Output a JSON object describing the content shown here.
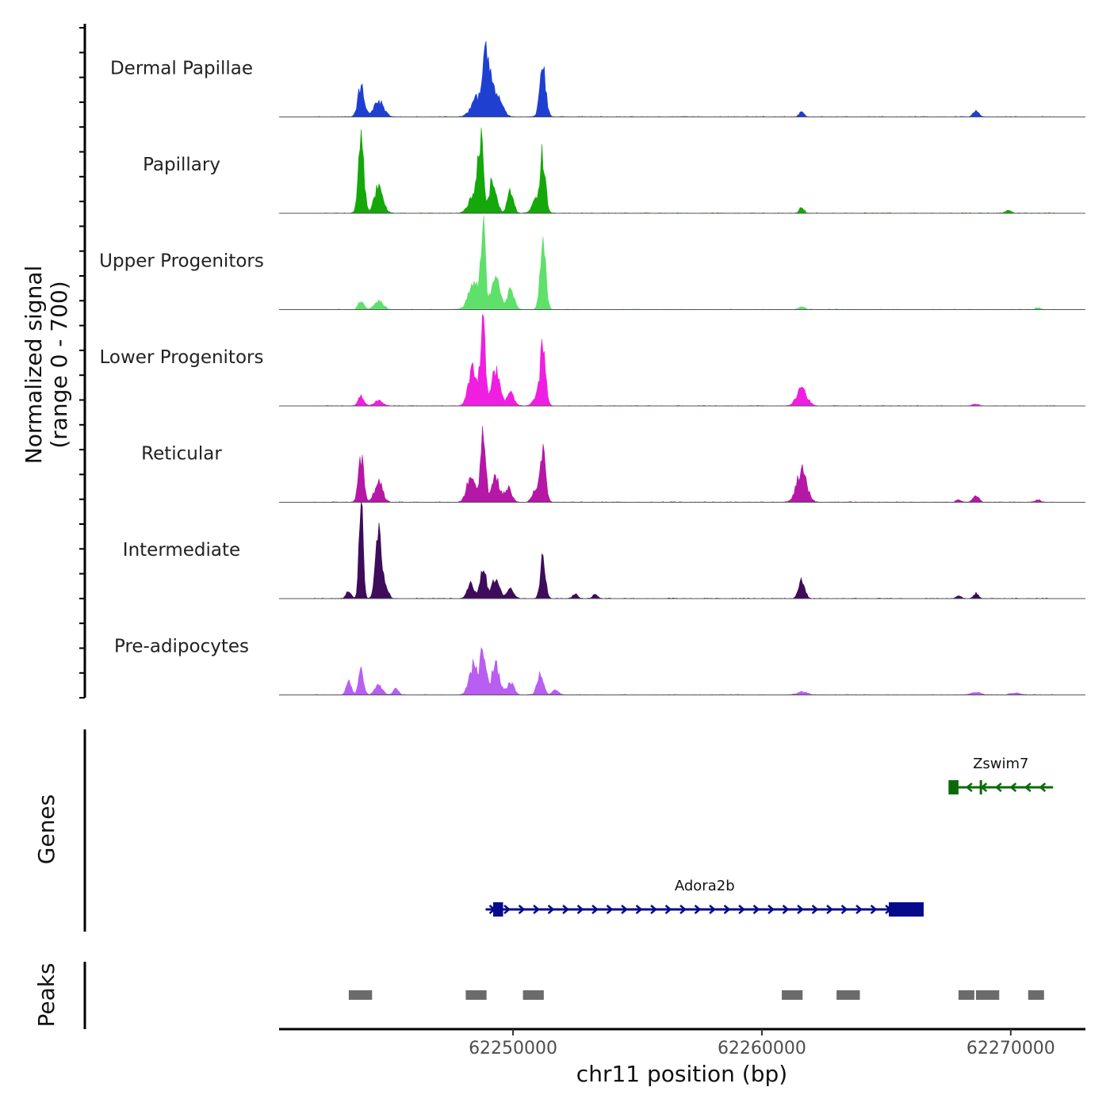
{
  "chart_data": {
    "type": "area",
    "title": "",
    "xlabel": "chr11 position (bp)",
    "ylabel": "Normalized signal",
    "ylabel_range": "(range 0 - 700)",
    "ylim": [
      0,
      700
    ],
    "xlim": [
      62240600,
      62273000
    ],
    "x_ticks": [
      62250000,
      62260000,
      62270000
    ],
    "x_tick_labels": [
      "62250000",
      "62260000",
      "62270000"
    ],
    "tracks": [
      {
        "name": "Dermal Papillae",
        "color": "#1f3fd1",
        "peaks": [
          [
            62243900,
            250,
            130
          ],
          [
            62244600,
            130,
            200
          ],
          [
            62248600,
            160,
            250
          ],
          [
            62248900,
            340,
            100
          ],
          [
            62249100,
            280,
            160
          ],
          [
            62249500,
            120,
            150
          ],
          [
            62251200,
            400,
            120
          ],
          [
            62261600,
            50,
            90
          ],
          [
            62268600,
            50,
            110
          ]
        ]
      },
      {
        "name": "Papillary",
        "color": "#14a80a",
        "peaks": [
          [
            62243900,
            560,
            110
          ],
          [
            62244600,
            220,
            170
          ],
          [
            62248700,
            500,
            100
          ],
          [
            62248500,
            180,
            220
          ],
          [
            62249200,
            280,
            140
          ],
          [
            62249900,
            180,
            120
          ],
          [
            62251200,
            460,
            110
          ],
          [
            62250900,
            100,
            150
          ],
          [
            62261600,
            50,
            90
          ],
          [
            62269900,
            20,
            120
          ]
        ]
      },
      {
        "name": "Upper Progenitors",
        "color": "#5ee06a",
        "peaks": [
          [
            62243900,
            70,
            110
          ],
          [
            62244600,
            70,
            170
          ],
          [
            62248800,
            720,
            90
          ],
          [
            62248400,
            220,
            200
          ],
          [
            62249300,
            260,
            170
          ],
          [
            62249900,
            160,
            140
          ],
          [
            62251200,
            560,
            110
          ],
          [
            62261600,
            20,
            120
          ],
          [
            62271100,
            15,
            100
          ]
        ]
      },
      {
        "name": "Lower Progenitors",
        "color": "#ef1ee0",
        "peaks": [
          [
            62243900,
            80,
            110
          ],
          [
            62244600,
            40,
            170
          ],
          [
            62248800,
            740,
            90
          ],
          [
            62248400,
            300,
            180
          ],
          [
            62249300,
            280,
            160
          ],
          [
            62249900,
            100,
            140
          ],
          [
            62251200,
            490,
            110
          ],
          [
            62250900,
            60,
            130
          ],
          [
            62261600,
            140,
            200
          ],
          [
            62268600,
            15,
            120
          ]
        ]
      },
      {
        "name": "Reticular",
        "color": "#b517a6",
        "peaks": [
          [
            62243900,
            340,
            110
          ],
          [
            62244600,
            160,
            160
          ],
          [
            62248800,
            560,
            100
          ],
          [
            62248300,
            220,
            160
          ],
          [
            62249300,
            200,
            150
          ],
          [
            62249800,
            120,
            140
          ],
          [
            62251200,
            400,
            110
          ],
          [
            62250900,
            90,
            130
          ],
          [
            62261600,
            250,
            200
          ],
          [
            62268600,
            50,
            120
          ],
          [
            62267900,
            20,
            100
          ],
          [
            62271100,
            20,
            100
          ]
        ]
      },
      {
        "name": "Intermediate",
        "color": "#3e0c5a",
        "peaks": [
          [
            62243900,
            780,
            80
          ],
          [
            62244600,
            500,
            120
          ],
          [
            62243400,
            60,
            100
          ],
          [
            62244900,
            100,
            100
          ],
          [
            62248800,
            270,
            110
          ],
          [
            62248300,
            120,
            140
          ],
          [
            62249300,
            160,
            150
          ],
          [
            62249900,
            80,
            130
          ],
          [
            62251200,
            360,
            100
          ],
          [
            62252500,
            40,
            100
          ],
          [
            62253300,
            30,
            100
          ],
          [
            62261600,
            150,
            120
          ],
          [
            62268600,
            40,
            100
          ],
          [
            62267900,
            20,
            100
          ]
        ]
      },
      {
        "name": "Pre-adipocytes",
        "color": "#b85ef0",
        "peaks": [
          [
            62243400,
            120,
            100
          ],
          [
            62243900,
            190,
            100
          ],
          [
            62244600,
            90,
            140
          ],
          [
            62245300,
            60,
            100
          ],
          [
            62248800,
            390,
            110
          ],
          [
            62248400,
            240,
            160
          ],
          [
            62249300,
            240,
            160
          ],
          [
            62249900,
            100,
            140
          ],
          [
            62251100,
            200,
            120
          ],
          [
            62251700,
            40,
            120
          ],
          [
            62261600,
            25,
            200
          ],
          [
            62268600,
            20,
            200
          ],
          [
            62270200,
            15,
            200
          ]
        ]
      }
    ],
    "genes": [
      {
        "name": "Zswim7",
        "color": "#0a6a0a",
        "strand": "-",
        "start": 62267500,
        "end": 62271700,
        "exon_blocks": [
          [
            62267500,
            62267900
          ]
        ],
        "tick_exons": [
          62268800
        ]
      },
      {
        "name": "Adora2b",
        "color": "#050b8a",
        "strand": "+",
        "start": 62248900,
        "end": 62266500,
        "exon_blocks": [
          [
            62249200,
            62249600
          ],
          [
            62265100,
            62266500
          ]
        ],
        "tick_exons": []
      }
    ],
    "peaks_track_label": "Peaks",
    "genes_track_label": "Genes",
    "peak_regions": [
      [
        62243400,
        62244400
      ],
      [
        62248100,
        62249000
      ],
      [
        62250400,
        62251300
      ],
      [
        62260800,
        62261700
      ],
      [
        62263000,
        62264000
      ],
      [
        62267900,
        62268600
      ],
      [
        62268600,
        62269600
      ],
      [
        62270700,
        62271400
      ]
    ],
    "peak_color": "#6b6b6b"
  }
}
